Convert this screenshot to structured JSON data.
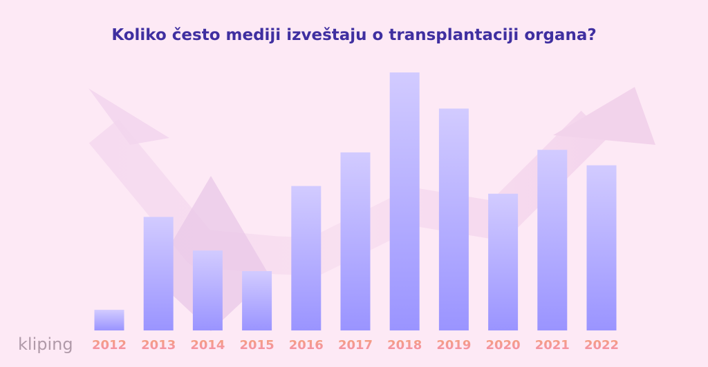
{
  "chart_data": {
    "type": "bar",
    "title": "Koliko često mediji  izveštaju o transplantaciji organa?",
    "categories": [
      "2012",
      "2013",
      "2014",
      "2015",
      "2016",
      "2017",
      "2018",
      "2019",
      "2020",
      "2021",
      "2022"
    ],
    "values": [
      8,
      44,
      31,
      23,
      56,
      69,
      100,
      86,
      53,
      70,
      64
    ],
    "ylim": [
      0,
      100
    ],
    "grid": false,
    "legend": "none",
    "colors": {
      "bar_top": "#d2cbff",
      "bar_bottom": "#9a94ff",
      "tick_top": "#f4a07a",
      "tick_bottom": "#f58fb0",
      "title": "#3f2fa0",
      "arrow": "#f0cbe6",
      "diamond": "#e3bde3"
    }
  },
  "brand": {
    "logo_text": "kliping"
  }
}
